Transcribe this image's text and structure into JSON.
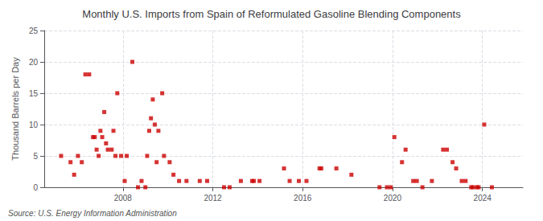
{
  "chart_data": {
    "type": "scatter",
    "title": "Monthly U.S. Imports from Spain of Reformulated Gasoline Blending Components",
    "ylabel": "Thousand Barrels per Day",
    "annotation": "Source: U.S. Energy Information Administration",
    "color": "#cc0000",
    "marker": "square",
    "grid": true,
    "xlim": [
      2004.5,
      2025.8
    ],
    "xticks": [
      2008,
      2012,
      2016,
      2020,
      2024
    ],
    "ylim": [
      0,
      25
    ],
    "yticks": [
      0,
      5,
      10,
      15,
      20,
      25
    ],
    "x": [
      2005.25,
      2005.67,
      2005.83,
      2006.0,
      2006.17,
      2006.33,
      2006.5,
      2006.67,
      2006.75,
      2006.83,
      2006.92,
      2007.0,
      2007.08,
      2007.17,
      2007.25,
      2007.33,
      2007.5,
      2007.58,
      2007.67,
      2007.75,
      2007.92,
      2008.08,
      2008.17,
      2008.42,
      2008.67,
      2008.83,
      2009.0,
      2009.08,
      2009.17,
      2009.25,
      2009.33,
      2009.42,
      2009.5,
      2009.58,
      2009.75,
      2009.83,
      2010.08,
      2010.25,
      2010.5,
      2010.83,
      2011.42,
      2011.75,
      2012.5,
      2012.75,
      2013.25,
      2013.75,
      2013.83,
      2014.08,
      2015.17,
      2015.42,
      2015.83,
      2016.17,
      2016.75,
      2016.83,
      2017.5,
      2018.17,
      2019.42,
      2019.75,
      2019.92,
      2020.08,
      2020.42,
      2020.58,
      2020.92,
      2021.08,
      2021.33,
      2021.75,
      2022.25,
      2022.42,
      2022.67,
      2022.83,
      2023.08,
      2023.25,
      2023.5,
      2023.58,
      2023.75,
      2023.83,
      2024.08,
      2024.42
    ],
    "values": [
      5,
      4,
      2,
      5,
      4,
      18,
      18,
      8,
      8,
      6,
      5,
      9,
      8,
      12,
      7,
      6,
      6,
      9,
      5,
      15,
      5,
      1,
      5,
      20,
      0,
      1,
      0,
      5,
      9,
      11,
      14,
      10,
      4,
      9,
      15,
      5,
      4,
      2,
      1,
      1,
      1,
      1,
      0,
      0,
      1,
      1,
      1,
      1,
      3,
      1,
      1,
      1,
      3,
      3,
      3,
      2,
      0,
      0,
      0,
      8,
      4,
      6,
      1,
      1,
      0,
      1,
      6,
      6,
      4,
      3,
      1,
      1,
      0,
      0,
      0,
      0,
      10,
      0
    ]
  }
}
